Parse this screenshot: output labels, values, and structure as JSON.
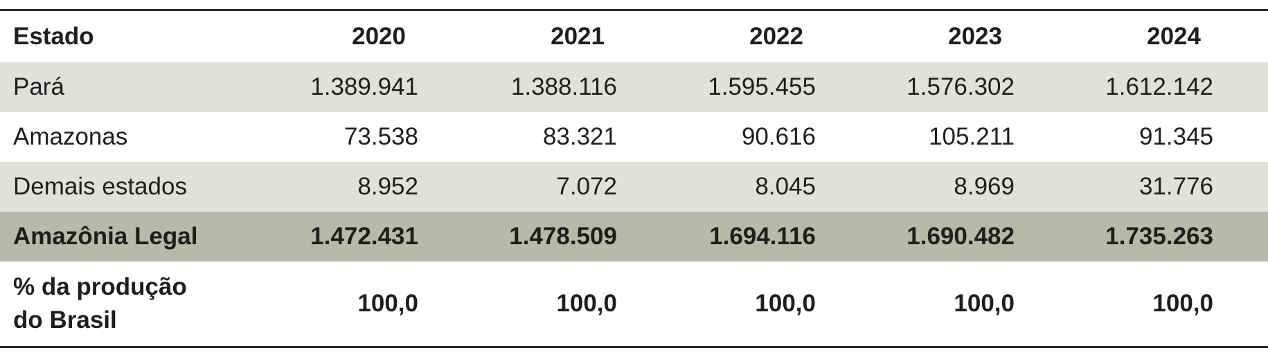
{
  "table": {
    "header": [
      "Estado",
      "2020",
      "2021",
      "2022",
      "2023",
      "2024"
    ],
    "rows": [
      [
        "Pará",
        "1.389.941",
        "1.388.116",
        "1.595.455",
        "1.576.302",
        "1.612.142"
      ],
      [
        "Amazonas",
        "73.538",
        "83.321",
        "90.616",
        "105.211",
        "91.345"
      ],
      [
        "Demais estados",
        "8.952",
        "7.072",
        "8.045",
        "8.969",
        "31.776"
      ],
      [
        "Amazônia Legal",
        "1.472.431",
        "1.478.509",
        "1.694.116",
        "1.690.482",
        "1.735.263"
      ],
      [
        "% da produção do Brasil",
        "100,0",
        "100,0",
        "100,0",
        "100,0",
        "100,0"
      ]
    ]
  }
}
